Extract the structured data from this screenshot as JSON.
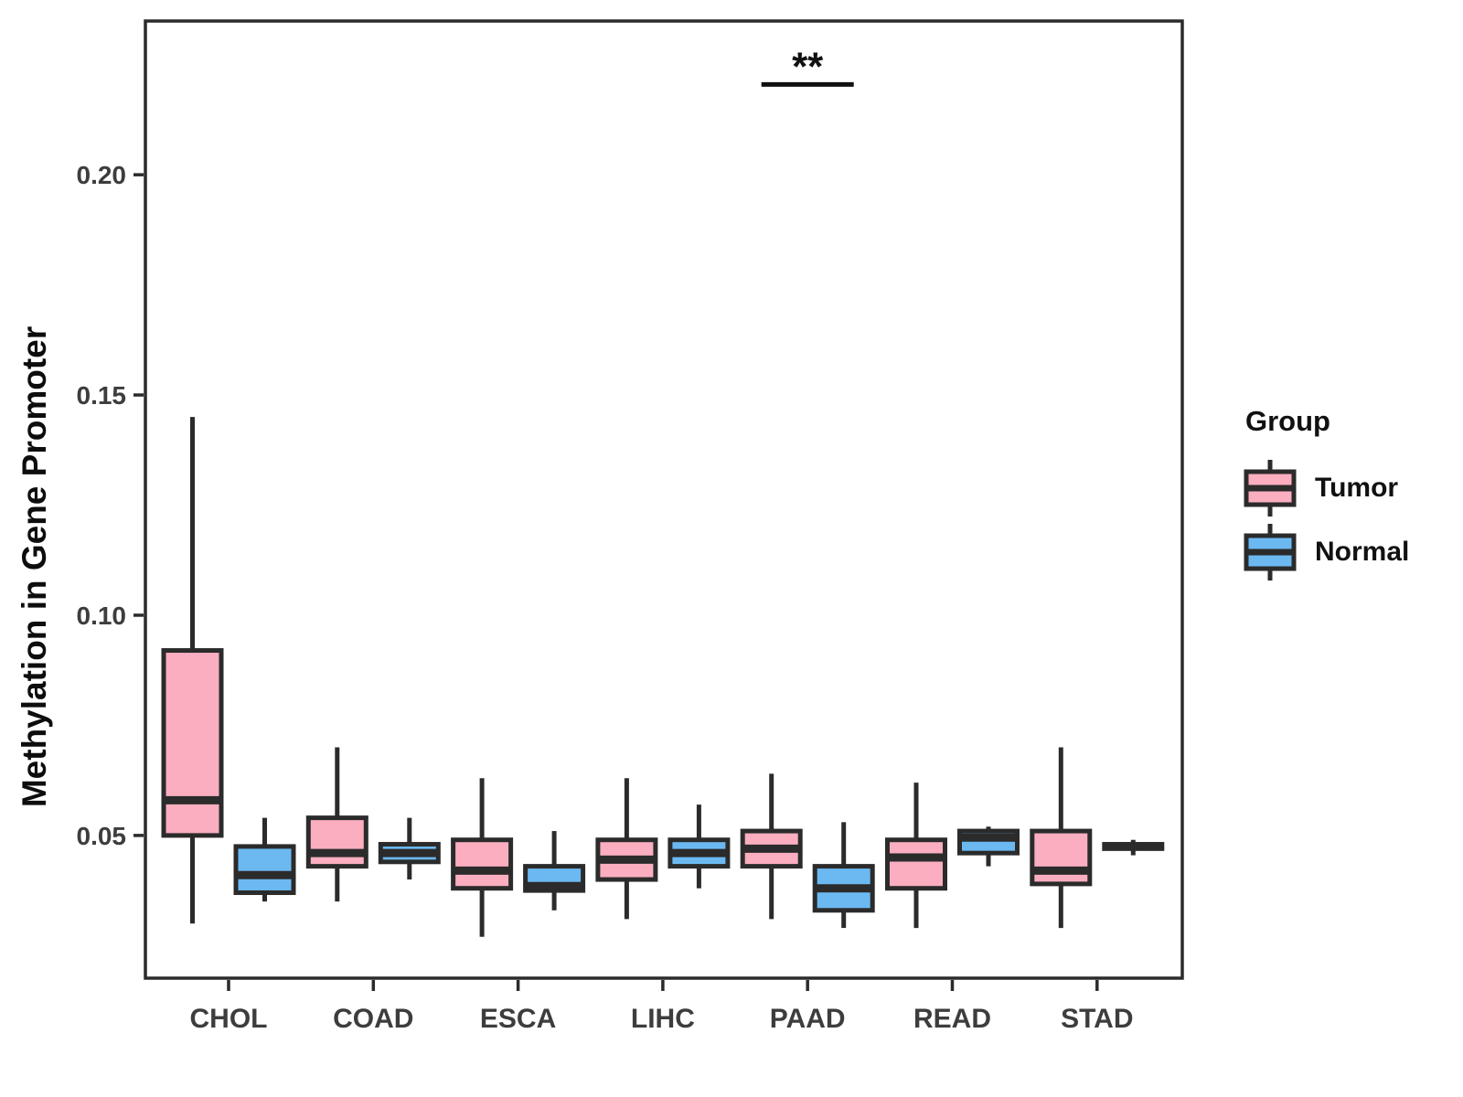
{
  "figure": {
    "y_axis_label": "Methylation in Gene Promoter",
    "legend": {
      "title": "Group",
      "tumor_label": "Tumor",
      "normal_label": "Normal"
    }
  },
  "chart_data": {
    "type": "boxplot",
    "title": "",
    "xlabel": "",
    "ylabel": "Methylation in Gene Promoter",
    "categories": [
      "CHOL",
      "COAD",
      "ESCA",
      "LIHC",
      "PAAD",
      "READ",
      "STAD"
    ],
    "ylim": [
      0.0176,
      0.2349
    ],
    "yticks": [
      0.05,
      0.1,
      0.15,
      0.2
    ],
    "ytick_labels": [
      "0.05",
      "0.10",
      "0.15",
      "0.20"
    ],
    "grid": false,
    "legend_position": "right",
    "legend_title": "Group",
    "colors": {
      "tumor_fill": "#FAAEC0",
      "normal_fill": "#6CB9F2",
      "line": "#2B2B2B",
      "tick_text": "#3D3D3D"
    },
    "series": [
      {
        "name": "Tumor",
        "color": "#FAAEC0",
        "boxes": [
          {
            "category": "CHOL",
            "min": 0.03,
            "q1": 0.05,
            "median": 0.058,
            "q3": 0.092,
            "max": 0.145
          },
          {
            "category": "COAD",
            "min": 0.035,
            "q1": 0.043,
            "median": 0.046,
            "q3": 0.054,
            "max": 0.07
          },
          {
            "category": "ESCA",
            "min": 0.027,
            "q1": 0.038,
            "median": 0.042,
            "q3": 0.049,
            "max": 0.063
          },
          {
            "category": "LIHC",
            "min": 0.031,
            "q1": 0.04,
            "median": 0.0445,
            "q3": 0.049,
            "max": 0.063
          },
          {
            "category": "PAAD",
            "min": 0.031,
            "q1": 0.043,
            "median": 0.047,
            "q3": 0.051,
            "max": 0.064
          },
          {
            "category": "READ",
            "min": 0.029,
            "q1": 0.038,
            "median": 0.045,
            "q3": 0.049,
            "max": 0.062
          },
          {
            "category": "STAD",
            "min": 0.029,
            "q1": 0.039,
            "median": 0.042,
            "q3": 0.051,
            "max": 0.07
          }
        ]
      },
      {
        "name": "Normal",
        "color": "#6CB9F2",
        "boxes": [
          {
            "category": "CHOL",
            "min": 0.035,
            "q1": 0.037,
            "median": 0.041,
            "q3": 0.0475,
            "max": 0.054
          },
          {
            "category": "COAD",
            "min": 0.04,
            "q1": 0.044,
            "median": 0.046,
            "q3": 0.048,
            "max": 0.054
          },
          {
            "category": "ESCA",
            "min": 0.033,
            "q1": 0.0375,
            "median": 0.0385,
            "q3": 0.043,
            "max": 0.051
          },
          {
            "category": "LIHC",
            "min": 0.038,
            "q1": 0.043,
            "median": 0.046,
            "q3": 0.049,
            "max": 0.057
          },
          {
            "category": "PAAD",
            "min": 0.029,
            "q1": 0.033,
            "median": 0.038,
            "q3": 0.043,
            "max": 0.053
          },
          {
            "category": "READ",
            "min": 0.043,
            "q1": 0.046,
            "median": 0.0495,
            "q3": 0.051,
            "max": 0.052
          },
          {
            "category": "STAD",
            "min": 0.0455,
            "q1": 0.047,
            "median": 0.0475,
            "q3": 0.048,
            "max": 0.049
          }
        ]
      }
    ],
    "annotations": [
      {
        "label": "**",
        "category": "PAAD",
        "between": [
          "Tumor",
          "Normal"
        ],
        "bar_y": 0.2205
      }
    ]
  }
}
